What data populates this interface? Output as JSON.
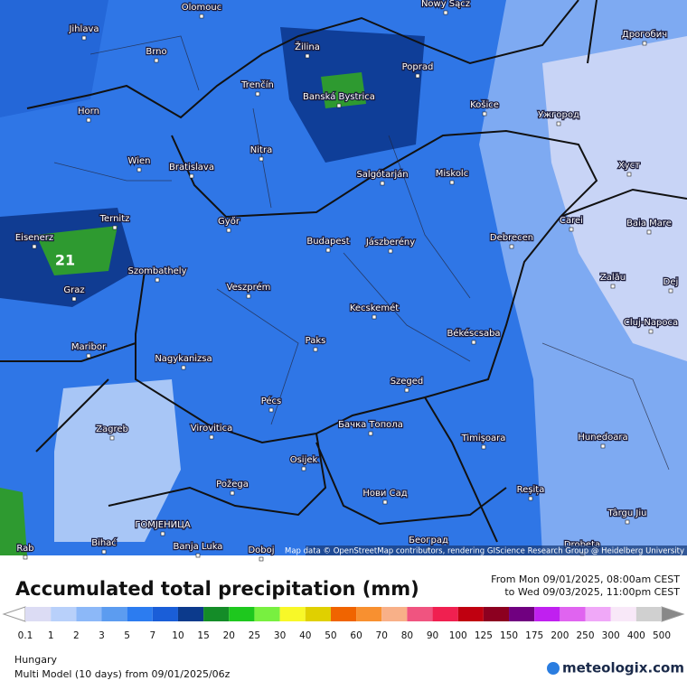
{
  "map": {
    "cities": [
      "Olomouc",
      "Nowy Sącz",
      "Jihlava",
      "Brno",
      "Žilina",
      "Poprad",
      "Дрогобич",
      "Banská Bystrica",
      "Trenčín",
      "Horn",
      "Košice",
      "Ужгород",
      "Nitra",
      "Wien",
      "Bratislava",
      "Хуст",
      "Salgótarján",
      "Miskolc",
      "Ternitz",
      "Győr",
      "Carei",
      "Baia Mare",
      "Eisenerz",
      "Budapest",
      "Jászberény",
      "Debrecen",
      "Szombathely",
      "Zalău",
      "Graz",
      "Veszprém",
      "Dej",
      "Kecskemét",
      "Cluj-Napoca",
      "Békéscsaba",
      "Maribor",
      "Paks",
      "Nagykanizsa",
      "Szeged",
      "Pécs",
      "Zagreb",
      "Virovitica",
      "Бачка Топола",
      "Timișoara",
      "Hunedoara",
      "Osijek",
      "Požega",
      "Reșița",
      "Нови Сад",
      "Târgu Jiu",
      "ГОМЈЕНИЦА",
      "Bihać",
      "Banja Luka",
      "Doboj",
      "Београд",
      "Drobeta",
      "Rab"
    ],
    "peak_label": "21",
    "attribution": "Map data © OpenStreetMap contributors, rendering GIScience Research Group @ Heidelberg University"
  },
  "legend": {
    "title": "Accumulated total precipitation (mm)",
    "period_from": "From Mon 09/01/2025, 08:00am CEST",
    "period_to": "to Wed 09/03/2025, 11:00pm CEST",
    "levels": [
      0.1,
      1,
      2,
      3,
      5,
      7,
      10,
      15,
      20,
      25,
      30,
      40,
      50,
      60,
      70,
      80,
      90,
      100,
      125,
      150,
      175,
      200,
      250,
      300,
      400,
      500
    ],
    "colors": [
      "#dcdcf4",
      "#b8d0fa",
      "#8cb8f8",
      "#5c9cf0",
      "#2c7cf0",
      "#1a5ed8",
      "#0c3a8c",
      "#148c28",
      "#1ec81e",
      "#78f040",
      "#f8f828",
      "#e0d000",
      "#f06400",
      "#f89030",
      "#f8b088",
      "#f05480",
      "#f02050",
      "#c00010",
      "#8c0020",
      "#700080",
      "#c020f0",
      "#e064f0",
      "#f0a8f8",
      "#f8e8f8",
      "#d0d0d0"
    ],
    "low_color": "#ffffff",
    "high_color": "#888888"
  },
  "footer": {
    "region": "Hungary",
    "model": "Multi Model (10 days) from 09/01/2025/06z",
    "brand": "meteologix.com"
  }
}
